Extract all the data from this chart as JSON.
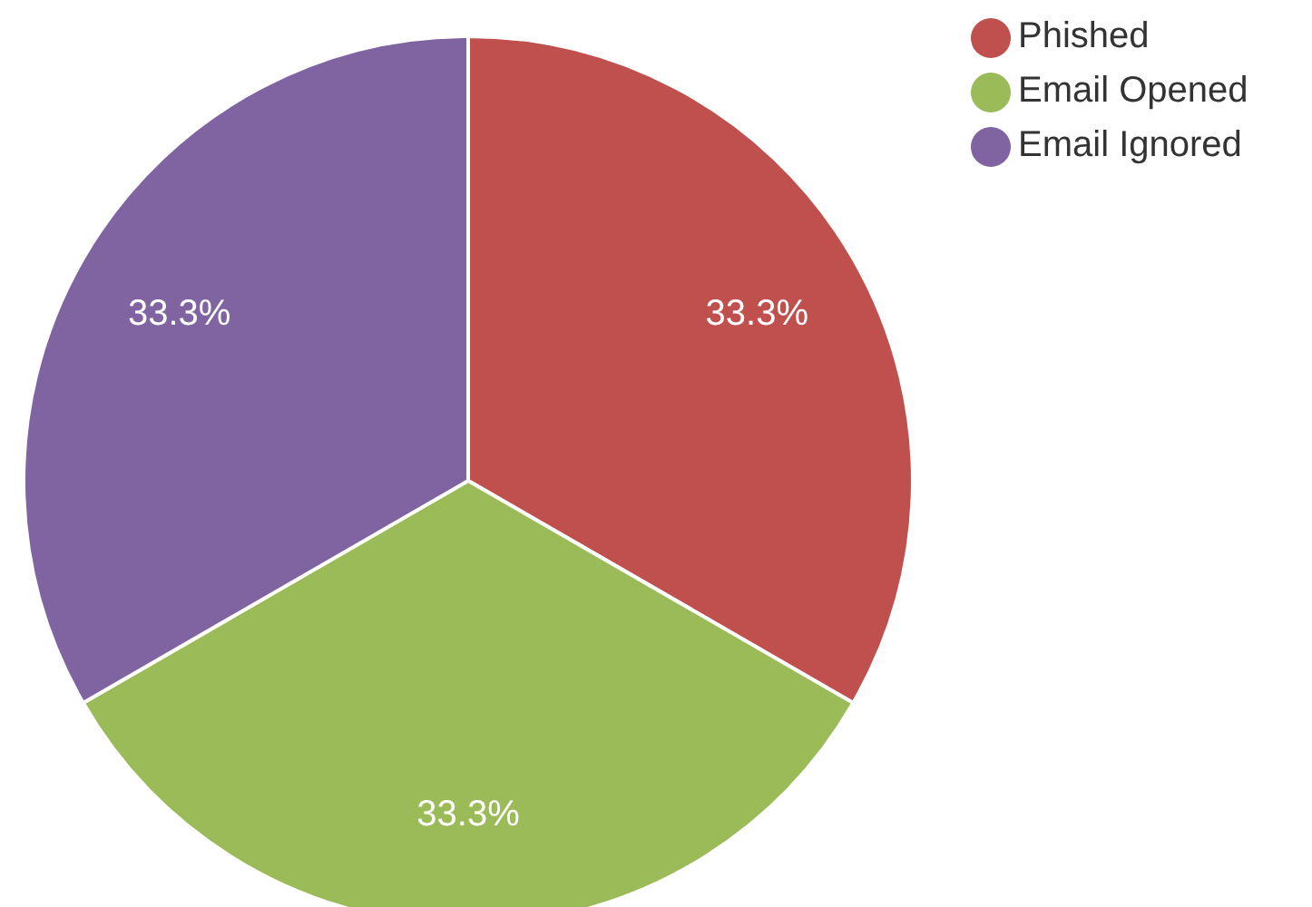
{
  "chart_data": {
    "type": "pie",
    "categories": [
      "Phished",
      "Email Opened",
      "Email Ignored"
    ],
    "values": [
      33.3,
      33.3,
      33.3
    ],
    "colors": [
      "#c0504d",
      "#9bbb59",
      "#8064a2"
    ],
    "value_labels": [
      "33.3%",
      "33.3%",
      "33.3%"
    ],
    "legend": "top right"
  }
}
